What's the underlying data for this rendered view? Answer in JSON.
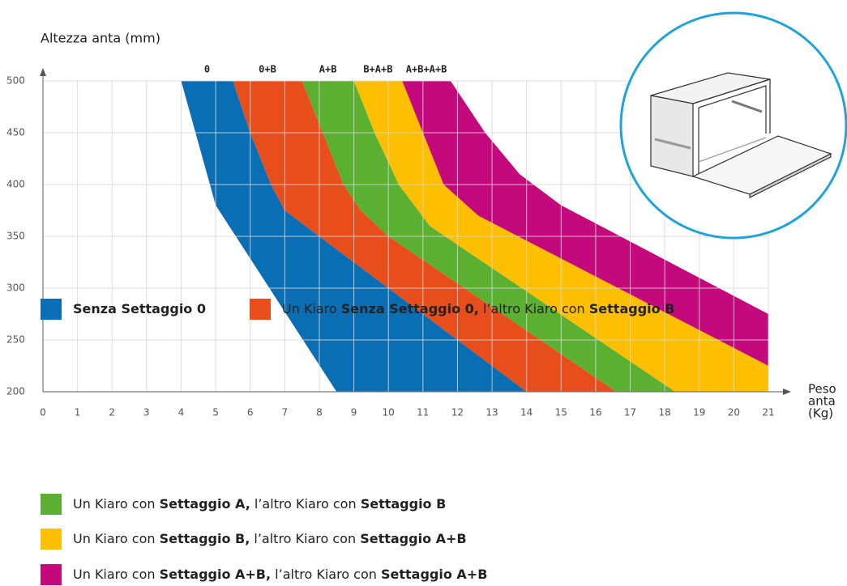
{
  "chart_data": {
    "type": "band",
    "y_label": "Altezza anta (mm)",
    "x_label": [
      "Peso",
      "anta",
      "(Kg)"
    ],
    "xlim": [
      0,
      21
    ],
    "ylim": [
      200,
      500
    ],
    "xticks": [
      0,
      1,
      2,
      3,
      4,
      5,
      6,
      7,
      8,
      9,
      10,
      11,
      12,
      13,
      14,
      15,
      16,
      17,
      18,
      19,
      20,
      21
    ],
    "yticks": [
      200,
      250,
      300,
      350,
      400,
      450,
      500
    ],
    "grid": true,
    "series": [
      {
        "name": "0",
        "color": "#0a6eb4",
        "left": {
          "x": [
            4,
            5,
            8.5
          ],
          "y": [
            500,
            380,
            200
          ]
        },
        "right": {
          "x": [
            5.5,
            6,
            6.6,
            7,
            14
          ],
          "y": [
            500,
            450,
            400,
            375,
            200
          ]
        }
      },
      {
        "name": "0+B",
        "color": "#e84e1b",
        "left": {
          "x": [
            5.5,
            6,
            6.6,
            7,
            14
          ],
          "y": [
            500,
            450,
            400,
            375,
            200
          ]
        },
        "right": {
          "x": [
            7.5,
            8.1,
            8.7,
            9.2,
            10,
            16.6
          ],
          "y": [
            500,
            450,
            400,
            375,
            350,
            200
          ]
        }
      },
      {
        "name": "A+B",
        "color": "#5bb031",
        "left": {
          "x": [
            7.5,
            8.1,
            8.7,
            9.2,
            10,
            16.6
          ],
          "y": [
            500,
            450,
            400,
            375,
            350,
            200
          ]
        },
        "right": {
          "x": [
            9,
            9.6,
            10.3,
            11.2,
            18.3
          ],
          "y": [
            500,
            450,
            400,
            360,
            200
          ]
        }
      },
      {
        "name": "B+A+B",
        "color": "#fdbf00",
        "left": {
          "x": [
            9,
            9.6,
            10.3,
            11.2,
            18.3
          ],
          "y": [
            500,
            450,
            400,
            360,
            200
          ]
        },
        "right": {
          "x": [
            10.4,
            11,
            11.6,
            12.6,
            21,
            21
          ],
          "y": [
            500,
            450,
            400,
            370,
            225,
            200
          ]
        }
      },
      {
        "name": "A+B+A+B",
        "color": "#c4097d",
        "left": {
          "x": [
            10.4,
            11,
            11.6,
            12.6,
            21
          ],
          "y": [
            500,
            450,
            400,
            370,
            225
          ]
        },
        "right": {
          "x": [
            11.8,
            12.8,
            13.8,
            15,
            21
          ],
          "y": [
            500,
            450,
            410,
            380,
            275
          ]
        }
      }
    ],
    "legend": [
      [
        {
          "text": "Senza Settaggio 0",
          "bold": true
        }
      ],
      [
        {
          "text": "Un Kiaro ",
          "bold": false
        },
        {
          "text": "Senza Settaggio 0,",
          "bold": true
        },
        {
          "text": " l’altro Kiaro con ",
          "bold": false
        },
        {
          "text": "Settaggio B",
          "bold": true
        }
      ],
      [
        {
          "text": "Un Kiaro con ",
          "bold": false
        },
        {
          "text": "Settaggio A,",
          "bold": true
        },
        {
          "text": " l’altro Kiaro con ",
          "bold": false
        },
        {
          "text": "Settaggio B",
          "bold": true
        }
      ],
      [
        {
          "text": "Un Kiaro con ",
          "bold": false
        },
        {
          "text": "Settaggio B,",
          "bold": true
        },
        {
          "text": " l’altro Kiaro con ",
          "bold": false
        },
        {
          "text": "Settaggio A+B",
          "bold": true
        }
      ],
      [
        {
          "text": "Un Kiaro con ",
          "bold": false
        },
        {
          "text": "Settaggio A+B,",
          "bold": true
        },
        {
          "text": " l’altro Kiaro con ",
          "bold": false
        },
        {
          "text": "Settaggio A+B",
          "bold": true
        }
      ]
    ]
  }
}
